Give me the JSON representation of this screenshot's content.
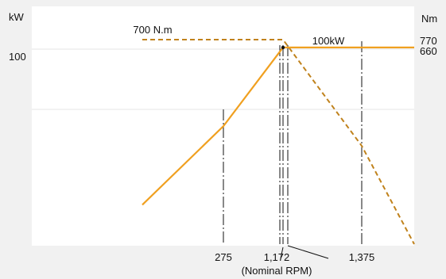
{
  "chart_data": {
    "type": "line",
    "y_left_label": "kW",
    "y_right_label": "Nm",
    "y_left_ticks": [
      {
        "value": 100,
        "label": "100"
      }
    ],
    "y_right_ticks": [
      {
        "value": 770,
        "label": "770"
      },
      {
        "value": 660,
        "label": "660"
      }
    ],
    "x_ticks": [
      {
        "value": 275,
        "label": "275"
      },
      {
        "value": 1172,
        "label": "1,172"
      },
      {
        "value": 1375,
        "label": "1,375"
      }
    ],
    "x_note": "(Nominal RPM)",
    "annotations": {
      "torque": "700 N.m",
      "power": "100kW"
    },
    "colors": {
      "line": "#f0a020",
      "dashed": "#c0821c",
      "background": "#f1f1f1",
      "plot": "#ffffff"
    },
    "series": [
      {
        "style": "solid",
        "points": [
          [
            0,
            20
          ],
          [
            275,
            60
          ],
          [
            1172,
            100
          ],
          [
            1375,
            100
          ],
          [
            1600,
            100
          ]
        ]
      },
      {
        "style": "dashed",
        "points": [
          [
            0,
            104
          ],
          [
            1172,
            104
          ],
          [
            1375,
            50
          ],
          [
            1600,
            0
          ]
        ]
      }
    ]
  }
}
